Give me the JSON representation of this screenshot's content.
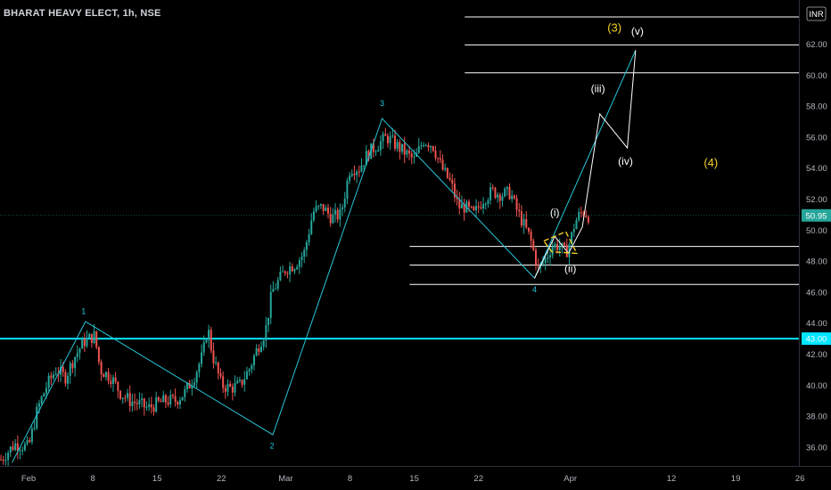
{
  "header": {
    "title": "BHARAT HEAVY ELECT, 1h, NSE",
    "currency": "INR"
  },
  "chart_data": {
    "type": "candlestick",
    "ylim": [
      34.9,
      64.6
    ],
    "y_ticks": [
      36,
      38,
      40,
      42,
      44,
      46,
      48,
      50,
      52,
      54,
      56,
      58,
      60,
      62
    ],
    "x_ticks": [
      {
        "label": "Feb",
        "day": 0
      },
      {
        "label": "8",
        "day": 7
      },
      {
        "label": "15",
        "day": 14
      },
      {
        "label": "22",
        "day": 21
      },
      {
        "label": "Mar",
        "day": 28
      },
      {
        "label": "8",
        "day": 35
      },
      {
        "label": "15",
        "day": 42
      },
      {
        "label": "22",
        "day": 49
      },
      {
        "label": "Apr",
        "day": 59
      },
      {
        "label": "12",
        "day": 70
      },
      {
        "label": "19",
        "day": 77
      },
      {
        "label": "26",
        "day": 84
      }
    ],
    "last_price": {
      "value": 50.95,
      "label": "50.95"
    },
    "horizontal_level": {
      "value": 43.0,
      "label": "43.00"
    },
    "price_path": [
      [
        -3.0,
        35.2
      ],
      [
        -1.5,
        36.2
      ],
      [
        0.0,
        36.0
      ],
      [
        1.0,
        38.5
      ],
      [
        2.0,
        40.0
      ],
      [
        3.0,
        41.0
      ],
      [
        4.0,
        40.5
      ],
      [
        5.0,
        41.8
      ],
      [
        6.0,
        42.8
      ],
      [
        7.2,
        43.2
      ],
      [
        7.8,
        41.0
      ],
      [
        9.0,
        40.5
      ],
      [
        10.0,
        39.5
      ],
      [
        11.0,
        39.0
      ],
      [
        12.0,
        38.8
      ],
      [
        13.0,
        38.5
      ],
      [
        14.0,
        38.8
      ],
      [
        15.0,
        39.0
      ],
      [
        16.0,
        39.0
      ],
      [
        17.0,
        39.5
      ],
      [
        18.0,
        40.5
      ],
      [
        19.0,
        42.0
      ],
      [
        19.5,
        43.8
      ],
      [
        20.0,
        42.0
      ],
      [
        21.0,
        40.0
      ],
      [
        22.0,
        39.8
      ],
      [
        23.0,
        40.0
      ],
      [
        24.0,
        41.0
      ],
      [
        25.0,
        42.5
      ],
      [
        25.8,
        43.5
      ],
      [
        26.5,
        46.0
      ],
      [
        27.0,
        46.5
      ],
      [
        28.0,
        47.5
      ],
      [
        29.0,
        47.8
      ],
      [
        30.0,
        48.5
      ],
      [
        31.0,
        51.2
      ],
      [
        32.0,
        51.5
      ],
      [
        33.0,
        50.8
      ],
      [
        34.0,
        51.0
      ],
      [
        35.0,
        54.0
      ],
      [
        36.0,
        54.0
      ],
      [
        37.0,
        55.0
      ],
      [
        38.0,
        55.5
      ],
      [
        39.0,
        56.0
      ],
      [
        40.0,
        55.5
      ],
      [
        41.0,
        55.0
      ],
      [
        42.0,
        54.5
      ],
      [
        43.0,
        55.8
      ],
      [
        44.0,
        55.5
      ],
      [
        45.0,
        54.0
      ],
      [
        46.0,
        53.0
      ],
      [
        46.8,
        51.5
      ],
      [
        47.5,
        51.5
      ],
      [
        48.5,
        51.0
      ],
      [
        49.5,
        52.0
      ],
      [
        50.5,
        52.5
      ],
      [
        51.5,
        52.3
      ],
      [
        52.5,
        52.4
      ],
      [
        53.0,
        51.5
      ],
      [
        53.8,
        50.5
      ],
      [
        54.6,
        49.5
      ],
      [
        55.5,
        47.5
      ],
      [
        56.2,
        48.0
      ],
      [
        57.0,
        49.0
      ],
      [
        57.8,
        49.0
      ],
      [
        58.5,
        48.5
      ],
      [
        59.0,
        49.3
      ],
      [
        59.5,
        50.5
      ],
      [
        60.0,
        51.0
      ],
      [
        60.5,
        51.2
      ],
      [
        61.0,
        50.9
      ]
    ],
    "blue_wave_path": [
      [
        -1.8,
        35.0
      ],
      [
        6.2,
        44.1
      ],
      [
        26.6,
        36.8
      ],
      [
        38.5,
        57.2
      ],
      [
        55.1,
        46.9
      ],
      [
        66.1,
        61.6
      ]
    ],
    "blue_wave_labels": [
      {
        "label": "1",
        "day": 6.0,
        "value": 44.6
      },
      {
        "label": "2",
        "day": 26.5,
        "value": 35.9
      },
      {
        "label": "3",
        "day": 38.5,
        "value": 58.0
      },
      {
        "label": "4",
        "day": 55.1,
        "value": 46.0
      },
      {
        "label": "(3)",
        "day": 63.8,
        "value": 62.8
      },
      {
        "label": "(4)",
        "day": 74.3,
        "value": 54.1
      }
    ],
    "white_projection_path": [
      [
        55.1,
        46.9
      ],
      [
        57.3,
        49.6
      ],
      [
        58.8,
        48.5
      ],
      [
        60.3,
        50.2
      ],
      [
        62.2,
        57.5
      ],
      [
        65.2,
        55.3
      ],
      [
        66.1,
        61.6
      ]
    ],
    "white_wave_labels": [
      {
        "label": "(i)",
        "day": 57.3,
        "value": 50.9
      },
      {
        "label": "(ii)",
        "day": 59.0,
        "value": 47.3
      },
      {
        "label": "(iii)",
        "day": 62.0,
        "value": 58.9
      },
      {
        "label": "(iv)",
        "day": 65.0,
        "value": 54.2
      },
      {
        "label": "(v)",
        "day": 66.3,
        "value": 62.6
      }
    ],
    "yellow_triangle": [
      [
        56.1,
        49.3
      ],
      [
        58.5,
        49.9
      ],
      [
        59.7,
        48.5
      ],
      [
        57.0,
        48.6
      ]
    ],
    "fib_levels": [
      {
        "value": 63.75,
        "start_day": 47.5
      },
      {
        "value": 61.95,
        "start_day": 47.5
      },
      {
        "value": 60.15,
        "start_day": 47.5
      },
      {
        "value": 48.95,
        "start_day": 41.5
      },
      {
        "value": 47.75,
        "start_day": 41.5
      },
      {
        "value": 46.5,
        "start_day": 41.5
      }
    ],
    "colors": {
      "background": "#000000",
      "up": "#26a69a",
      "down": "#ef5350",
      "wave_blue": "#26c6da",
      "wave_white": "#ffffff",
      "wave_yellow": "#f5d228",
      "level_line": "#00e5ff",
      "axis_text": "#b2b5be"
    }
  }
}
